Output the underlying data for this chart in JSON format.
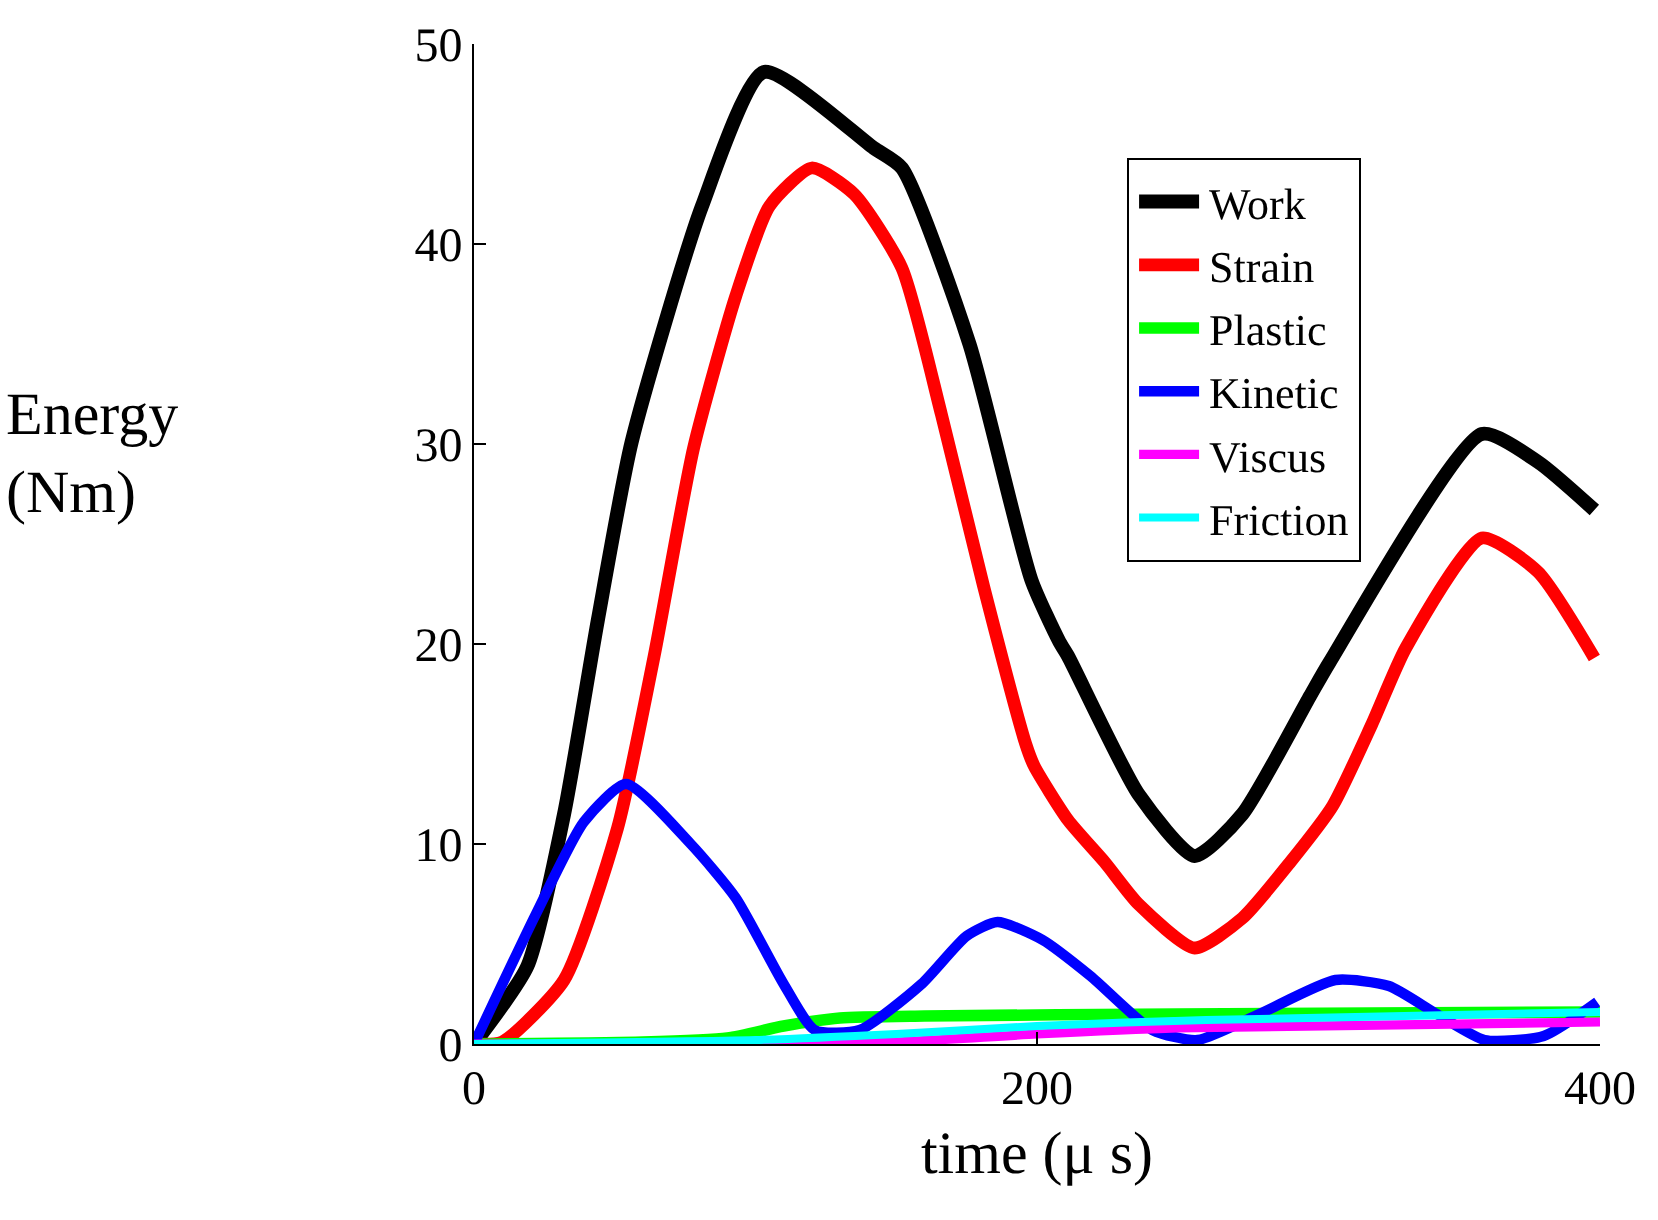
{
  "chart_data": {
    "type": "line",
    "xlabel": "time (μ s)",
    "ylabel": "Energy\n(Nm)",
    "xlim": [
      0,
      400
    ],
    "xticks": [
      0,
      200,
      400
    ],
    "ylim": [
      0,
      50
    ],
    "yticks": [
      0,
      10,
      20,
      30,
      40,
      50
    ],
    "grid": false,
    "legend": "top right",
    "marker": "none",
    "line_style": "solid",
    "series": [
      {
        "name": "Work",
        "color": "#000000",
        "x": [
          0,
          19,
          32,
          44,
          56,
          81,
          103,
          142,
          152,
          176,
          198,
          208,
          211,
          236,
          256,
          273,
          297,
          304,
          358,
          378,
          398
        ],
        "values": [
          0,
          3.9,
          11.5,
          21.2,
          30.1,
          41.9,
          48.6,
          44.8,
          43.8,
          35,
          23.2,
          20.1,
          19.4,
          12.5,
          9.4,
          11.5,
          17.4,
          19.1,
          30.5,
          29.1,
          26.7
        ]
      },
      {
        "name": "Strain",
        "color": "#ff0000",
        "x": [
          0,
          10,
          32,
          51,
          64,
          78,
          93,
          105,
          120,
          135,
          152,
          166,
          181,
          196,
          199,
          211,
          224,
          236,
          256,
          273,
          290,
          305,
          319,
          331,
          358,
          378,
          398
        ],
        "values": [
          0,
          0.1,
          3.2,
          10.8,
          19.4,
          29.8,
          37.4,
          41.9,
          43.8,
          42.5,
          38.8,
          31.5,
          22.9,
          15,
          13.9,
          11.2,
          9.1,
          7,
          4.8,
          6.3,
          9.1,
          11.9,
          16,
          19.8,
          25.3,
          23.6,
          19.3
        ]
      },
      {
        "name": "Plastic",
        "color": "#00ff00",
        "x": [
          0,
          60,
          90,
          110,
          130,
          160,
          250,
          400
        ],
        "values": [
          0,
          0.1,
          0.3,
          0.9,
          1.3,
          1.4,
          1.5,
          1.6
        ]
      },
      {
        "name": "Kinetic",
        "color": "#0000ff",
        "x": [
          0,
          22,
          39,
          54,
          77,
          93,
          110,
          121,
          137,
          159,
          175,
          186,
          202,
          219,
          241,
          257,
          279,
          306,
          325,
          342,
          359,
          380,
          399
        ],
        "values": [
          0,
          6.5,
          11.1,
          13,
          10,
          7.3,
          3,
          0.7,
          0.7,
          3,
          5.4,
          6.1,
          5.2,
          3.4,
          0.7,
          0.2,
          1.5,
          3.2,
          2.9,
          1.5,
          0.2,
          0.4,
          2.1
        ]
      },
      {
        "name": "Viscus",
        "color": "#ff00ff",
        "x": [
          0,
          100,
          150,
          200,
          250,
          400
        ],
        "values": [
          0,
          0,
          0.1,
          0.5,
          0.8,
          1.1
        ]
      },
      {
        "name": "Friction",
        "color": "#00ffff",
        "x": [
          0,
          100,
          150,
          200,
          260,
          400
        ],
        "values": [
          0,
          0.2,
          0.5,
          0.9,
          1.2,
          1.6
        ]
      }
    ]
  }
}
